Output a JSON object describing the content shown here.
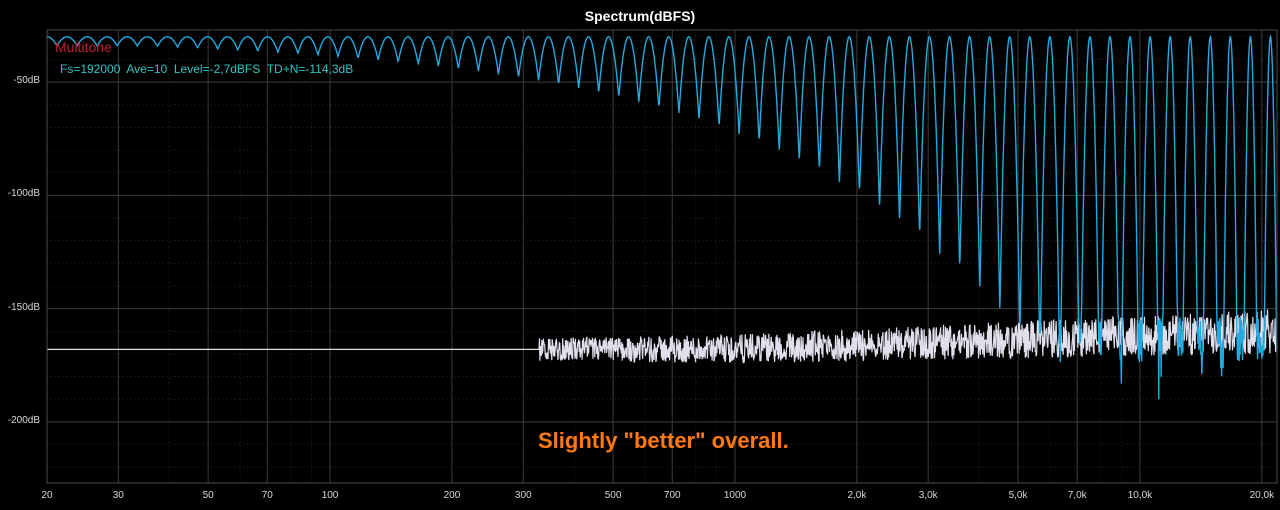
{
  "chart_data": {
    "type": "line",
    "title": "Spectrum(dBFS)",
    "x_scale": "log",
    "xlim": [
      20,
      21800
    ],
    "ylim": [
      -227,
      -27
    ],
    "grid": true,
    "y_ticks": [
      {
        "value": -50,
        "label": "-50dB"
      },
      {
        "value": -100,
        "label": "-100dB"
      },
      {
        "value": -150,
        "label": "-150dB"
      },
      {
        "value": -200,
        "label": "-200dB"
      }
    ],
    "x_ticks": [
      {
        "value": 20,
        "label": "20"
      },
      {
        "value": 30,
        "label": "30"
      },
      {
        "value": 50,
        "label": "50"
      },
      {
        "value": 70,
        "label": "70"
      },
      {
        "value": 100,
        "label": "100"
      },
      {
        "value": 200,
        "label": "200"
      },
      {
        "value": 300,
        "label": "300"
      },
      {
        "value": 500,
        "label": "500"
      },
      {
        "value": 700,
        "label": "700"
      },
      {
        "value": 1000,
        "label": "1000"
      },
      {
        "value": 2000,
        "label": "2,0k"
      },
      {
        "value": 3000,
        "label": "3,0k"
      },
      {
        "value": 5000,
        "label": "5,0k"
      },
      {
        "value": 7000,
        "label": "7,0k"
      },
      {
        "value": 10000,
        "label": "10,0k"
      },
      {
        "value": 20000,
        "label": "20,0k"
      }
    ],
    "legend": {
      "name": "Multitone",
      "info": "Fs=192000  Ave=10  Level=-2,7dBFS  TD+N=-114,3dB"
    },
    "annotation": "Slightly \"better\" overall.",
    "tone_level_db": -30,
    "tone_count": 62,
    "tone_freq_range": [
      20,
      21000
    ],
    "noise_floor_db": {
      "low_freq": -168,
      "high_freq": -160
    },
    "series": [
      {
        "color": "#23a9e1",
        "values": "multitone spectrum: tones at -30dB over noise floor"
      },
      {
        "color": "#dfe0ec",
        "values": "comparison trace: flat floor near -168dB rising to about -160dB with dense noise at high frequency"
      }
    ],
    "colors": {
      "background": "#000000",
      "grid": "#3a3a3a",
      "axis_text": "#d8d8d8",
      "title": "#ffffff",
      "legend_name": "#c0202a",
      "legend_info": "#2fc4c4",
      "annotation": "#ff7a12"
    }
  }
}
